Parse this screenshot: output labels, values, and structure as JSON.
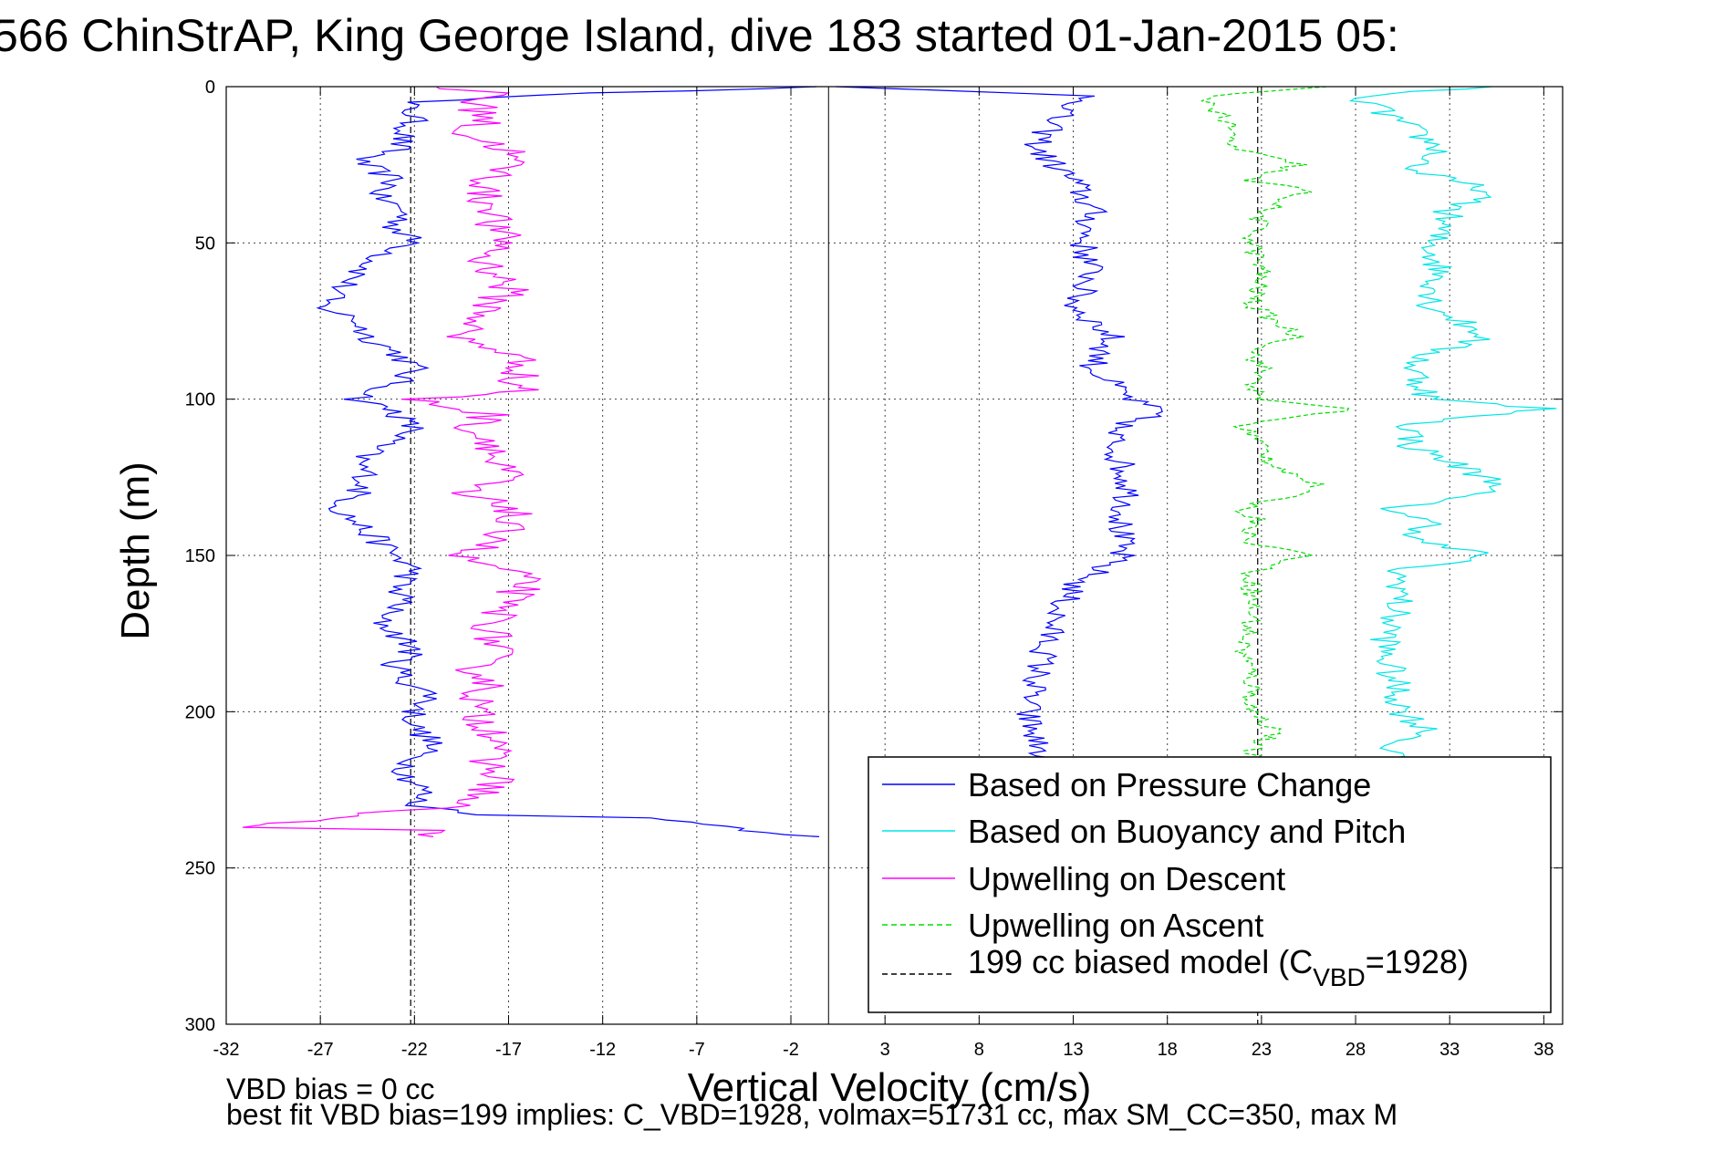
{
  "chart_data": {
    "type": "line",
    "title": "566 ChinStrAP, King George Island, dive 183 started 01-Jan-2015 05:",
    "xlabel": "Vertical Velocity (cm/s)",
    "ylabel": "Depth (m)",
    "xlim": [
      -32,
      39
    ],
    "ylim": [
      0,
      300
    ],
    "y_reversed": true,
    "grid": true,
    "xticks": [
      -32,
      -27,
      -22,
      -17,
      -12,
      -7,
      -2,
      3,
      8,
      13,
      18,
      23,
      28,
      33,
      38
    ],
    "yticks": [
      0,
      50,
      100,
      150,
      200,
      250,
      300
    ],
    "legend_position": "lower-right",
    "vertical_reference_x": 0,
    "series": [
      {
        "name": "Based on Pressure Change",
        "color": "#0000ff",
        "style": "solid",
        "depth": [
          0,
          2,
          5,
          10,
          15,
          20,
          24,
          30,
          35,
          40,
          45,
          50,
          55,
          60,
          65,
          70,
          75,
          80,
          85,
          90,
          95,
          100,
          104,
          110,
          115,
          120,
          125,
          130,
          135,
          140,
          145,
          150,
          155,
          160,
          165,
          170,
          175,
          180,
          185,
          190,
          195,
          200,
          205,
          210,
          215,
          220,
          225,
          230,
          233,
          234,
          236,
          238,
          240
        ],
        "descent_velocity": [
          0,
          -12,
          -22.5,
          -22,
          -22.5,
          -23,
          -25,
          -23,
          -24,
          -22.5,
          -23,
          -22,
          -24,
          -25,
          -26,
          -27,
          -25,
          -24.5,
          -23,
          -22,
          -23,
          -25,
          -23,
          -22,
          -24,
          -25,
          -24.5,
          -25,
          -26,
          -25,
          -24,
          -23,
          -22,
          -23,
          -22.5,
          -24,
          -23,
          -22,
          -23,
          -22.5,
          -21,
          -22,
          -22,
          -21,
          -22,
          -22.5,
          -21.5,
          -22,
          -18,
          -10,
          -6,
          -4,
          -0.5
        ],
        "ascent_depth": [
          0,
          3,
          10,
          20,
          30,
          40,
          50,
          60,
          70,
          80,
          90,
          100,
          104,
          110,
          120,
          130,
          140,
          150,
          160,
          170,
          180,
          190,
          200,
          210,
          215,
          220
        ],
        "ascent_velocity": [
          0,
          14,
          12,
          11,
          13,
          14,
          13.5,
          14,
          13,
          15,
          14,
          16,
          17.5,
          15,
          15.5,
          16,
          15.5,
          15.5,
          13,
          12,
          11.5,
          11,
          10.5,
          11,
          11.5,
          12
        ]
      },
      {
        "name": "Based on Buoyancy and Pitch",
        "color": "#00e5e5",
        "style": "solid",
        "depth": [
          0,
          3,
          10,
          20,
          27,
          33,
          40,
          50,
          60,
          70,
          80,
          85,
          90,
          100,
          103,
          108,
          115,
          120,
          128,
          135,
          140,
          145,
          150,
          155,
          160,
          170,
          180,
          190,
          200,
          207,
          210,
          215
        ],
        "velocity": [
          35,
          28,
          30,
          32.5,
          31,
          35,
          33,
          32,
          32.5,
          32,
          35,
          32,
          31,
          32,
          38,
          31,
          31,
          33,
          36,
          30,
          32,
          31,
          35,
          30,
          30.5,
          30,
          29.5,
          30,
          30.5,
          32,
          30,
          30
        ]
      },
      {
        "name": "Upwelling on Descent",
        "color": "#ff00ff",
        "style": "solid",
        "depth": [
          0,
          2,
          5,
          10,
          15,
          20,
          25,
          30,
          35,
          40,
          45,
          50,
          55,
          60,
          65,
          70,
          75,
          80,
          85,
          90,
          95,
          97,
          100,
          105,
          110,
          115,
          120,
          125,
          130,
          135,
          140,
          145,
          150,
          155,
          160,
          165,
          170,
          175,
          180,
          185,
          190,
          195,
          200,
          205,
          210,
          215,
          220,
          225,
          230,
          235,
          237,
          238,
          240
        ],
        "velocity": [
          -22,
          -17,
          -19,
          -18,
          -19.5,
          -17,
          -17,
          -18,
          -18.5,
          -17.5,
          -18,
          -17,
          -18.5,
          -17.5,
          -17,
          -18,
          -18.5,
          -20,
          -17,
          -16,
          -17,
          -15.5,
          -22,
          -18,
          -19,
          -17.5,
          -18,
          -17,
          -20,
          -16.5,
          -17.5,
          -17,
          -20,
          -17,
          -16,
          -17.5,
          -17.5,
          -18,
          -17.5,
          -19,
          -18,
          -18.5,
          -19,
          -18,
          -17,
          -18.5,
          -17.5,
          -18,
          -20,
          -28,
          -32,
          -20,
          -21
        ]
      },
      {
        "name": "Upwelling on Ascent",
        "color": "#00dd00",
        "style": "dashed",
        "depth": [
          0,
          3,
          10,
          20,
          25,
          30,
          33,
          40,
          50,
          60,
          70,
          80,
          85,
          90,
          100,
          103,
          108,
          115,
          120,
          128,
          135,
          140,
          145,
          150,
          155,
          160,
          170,
          180,
          190,
          200,
          207,
          210,
          215
        ],
        "velocity": [
          26,
          20,
          21,
          21.5,
          25,
          22,
          25.5,
          23,
          22.5,
          23,
          22.5,
          25,
          22.5,
          23,
          22.5,
          28,
          22,
          23,
          23.5,
          26,
          22,
          23,
          22,
          25.5,
          22.5,
          22.5,
          22.5,
          22,
          22.5,
          22.5,
          24,
          22.5,
          22.5
        ]
      },
      {
        "name": "199 cc biased model (CVBD=1928)",
        "color": "#000000",
        "style": "dashed",
        "x_constant": [
          -22.2,
          22.8
        ]
      }
    ],
    "legend_entries": [
      "Based on Pressure Change",
      "Based on Buoyancy and Pitch",
      "Upwelling on Descent",
      "Upwelling on Ascent"
    ],
    "legend_last": {
      "prefix": "199 cc biased model (C",
      "subscript": "VBD",
      "suffix": "=1928)"
    },
    "annotations": [
      "VBD bias = 0 cc",
      "best fit VBD bias=199 implies: C_VBD=1928, volmax=51731 cc, max SM_CC=350, max M"
    ]
  }
}
